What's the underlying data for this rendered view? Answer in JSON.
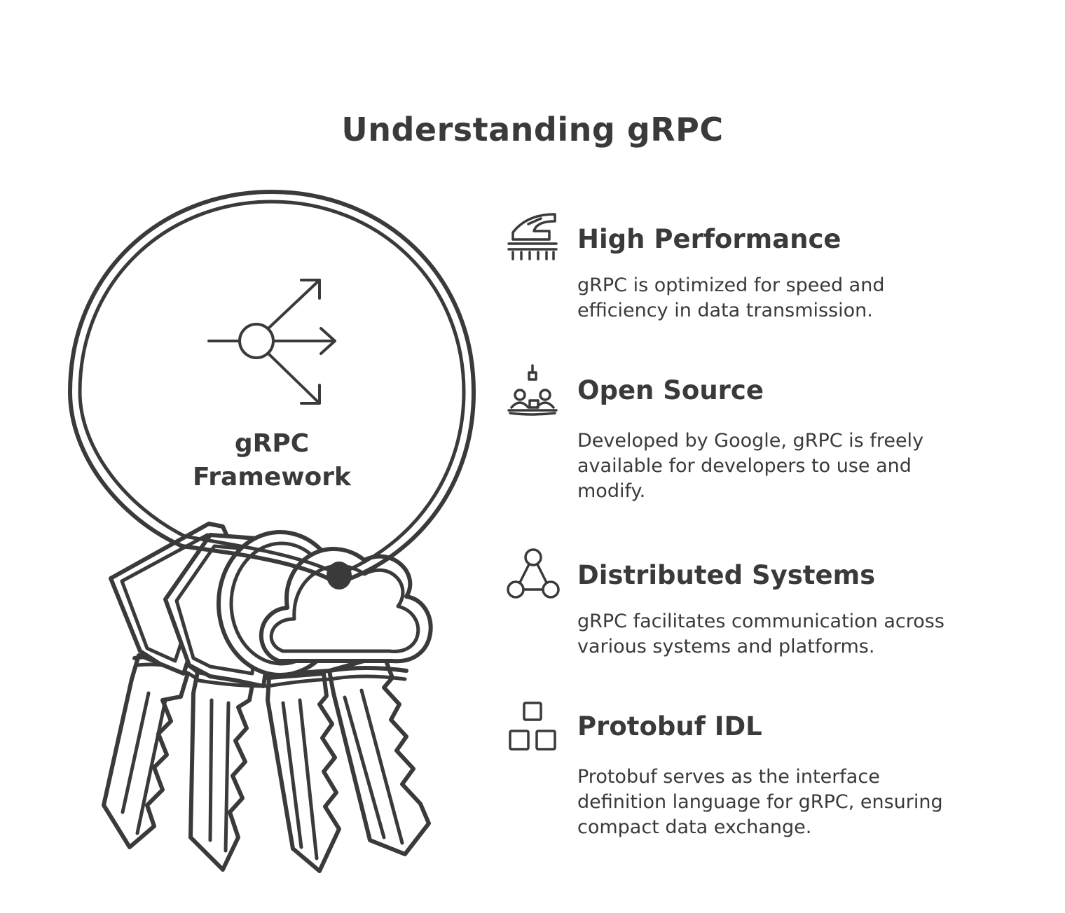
{
  "title": "Understanding gRPC",
  "ring": {
    "label_line1": "gRPC",
    "label_line2": "Framework",
    "icon": "split-arrows-icon"
  },
  "features": [
    {
      "icon": "train-icon",
      "heading": "High Performance",
      "line1": "gRPC is optimized for speed and",
      "line2": "efficiency in data transmission.",
      "line3": ""
    },
    {
      "icon": "people-collaboration-icon",
      "heading": "Open Source",
      "line1": "Developed by Google, gRPC is freely",
      "line2": "available for developers to use and",
      "line3": "modify."
    },
    {
      "icon": "network-nodes-icon",
      "heading": "Distributed Systems",
      "line1": "gRPC facilitates communication across",
      "line2": "various systems and platforms.",
      "line3": ""
    },
    {
      "icon": "blocks-icon",
      "heading": "Protobuf IDL",
      "line1": "Protobuf serves as the interface",
      "line2": "definition language for gRPC, ensuring",
      "line3": "compact data exchange."
    }
  ],
  "colors": {
    "stroke": "#3a3a3a",
    "background": "#ffffff"
  }
}
